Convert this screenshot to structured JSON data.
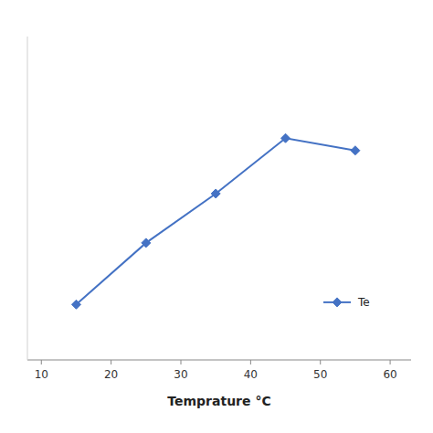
{
  "chart_data": {
    "type": "line",
    "xlabel": "Temprature °C",
    "x": [
      15,
      25,
      35,
      45,
      55
    ],
    "series": [
      {
        "name": "Te",
        "color": "#4472C4",
        "marker": "diamond",
        "values": [
          0.18,
          0.38,
          0.54,
          0.72,
          0.68
        ]
      }
    ],
    "xlim": [
      8,
      63
    ],
    "xticks": [
      10,
      20,
      30,
      40,
      50,
      60
    ],
    "ylim": [
      0.0,
      1.05
    ],
    "yticks": [],
    "tick_labels": "x",
    "grid": false,
    "legend": "lower right"
  }
}
